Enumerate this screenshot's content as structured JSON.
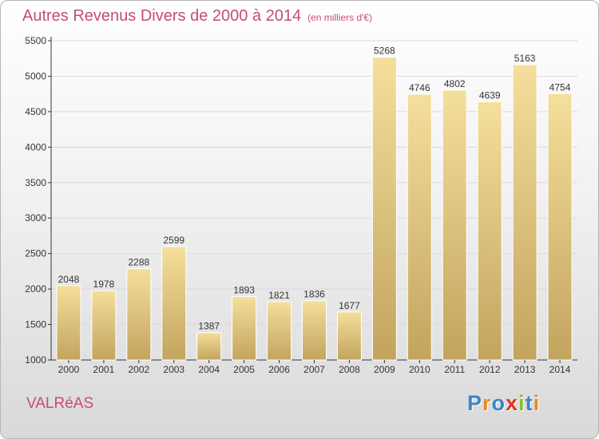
{
  "title": "Autres Revenus Divers de 2000 à 2014",
  "subtitle": "(en milliers d'€)",
  "commune": "VALRéAS",
  "logo": {
    "text": "Proxiti",
    "letters": [
      {
        "ch": "P",
        "color": "#3a86c8"
      },
      {
        "ch": "r",
        "color": "#e98b1d"
      },
      {
        "ch": "o",
        "color": "#3a86c8"
      },
      {
        "ch": "x",
        "color": "#e8331c"
      },
      {
        "ch": "i",
        "color": "#8cbf2a"
      },
      {
        "ch": "t",
        "color": "#3a86c8"
      },
      {
        "ch": "i",
        "color": "#e98b1d"
      }
    ]
  },
  "colors": {
    "accent": "#c64d6f",
    "bar_top": "#f5df9c",
    "bar_bottom": "#c2a45e",
    "grid": "#d9d9d9",
    "axis": "#333333"
  },
  "chart_data": {
    "type": "bar",
    "categories": [
      "2000",
      "2001",
      "2002",
      "2003",
      "2004",
      "2005",
      "2006",
      "2007",
      "2008",
      "2009",
      "2010",
      "2011",
      "2012",
      "2013",
      "2014"
    ],
    "values": [
      2048,
      1978,
      2288,
      2599,
      1387,
      1893,
      1821,
      1836,
      1677,
      5268,
      4746,
      4802,
      4639,
      5163,
      4754
    ],
    "ylim": [
      1000,
      5500
    ],
    "yticks": [
      1000,
      1500,
      2000,
      2500,
      3000,
      3500,
      4000,
      4500,
      5000,
      5500
    ],
    "grid": true,
    "data_labels": true
  }
}
